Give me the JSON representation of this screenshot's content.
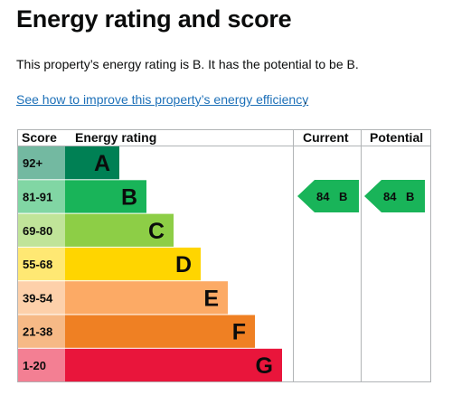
{
  "heading": "Energy rating and score",
  "summary": "This property’s energy rating is B. It has the potential to be B.",
  "link": {
    "text": "See how to improve this property’s energy efficiency",
    "suffix": "."
  },
  "table_headers": {
    "score": "Score",
    "rating": "Energy rating",
    "current": "Current",
    "potential": "Potential"
  },
  "bands": [
    {
      "score": "92+",
      "letter": "A",
      "color": "#008054"
    },
    {
      "score": "81-91",
      "letter": "B",
      "color": "#19b459"
    },
    {
      "score": "69-80",
      "letter": "C",
      "color": "#8dce46"
    },
    {
      "score": "55-68",
      "letter": "D",
      "color": "#ffd500"
    },
    {
      "score": "39-54",
      "letter": "E",
      "color": "#fcaa65"
    },
    {
      "score": "21-38",
      "letter": "F",
      "color": "#ef8023"
    },
    {
      "score": "1-20",
      "letter": "G",
      "color": "#e9153b"
    }
  ],
  "current": {
    "score": "84",
    "letter": "B",
    "color": "#19b459"
  },
  "potential": {
    "score": "84",
    "letter": "B",
    "color": "#19b459"
  }
}
